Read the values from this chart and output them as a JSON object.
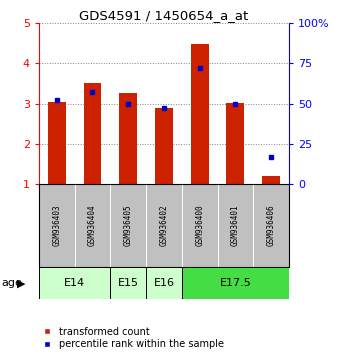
{
  "title": "GDS4591 / 1450654_a_at",
  "samples": [
    "GSM936403",
    "GSM936404",
    "GSM936405",
    "GSM936402",
    "GSM936400",
    "GSM936401",
    "GSM936406"
  ],
  "transformed_count": [
    3.05,
    3.5,
    3.27,
    2.9,
    4.47,
    3.02,
    1.2
  ],
  "percentile_rank": [
    52,
    57,
    50,
    47,
    72,
    50,
    17
  ],
  "age_groups": [
    {
      "label": "E14",
      "samples": [
        "GSM936403",
        "GSM936404"
      ],
      "color": "#ccffcc"
    },
    {
      "label": "E15",
      "samples": [
        "GSM936405"
      ],
      "color": "#ccffcc"
    },
    {
      "label": "E16",
      "samples": [
        "GSM936402"
      ],
      "color": "#ccffcc"
    },
    {
      "label": "E17.5",
      "samples": [
        "GSM936400",
        "GSM936401",
        "GSM936406"
      ],
      "color": "#44dd44"
    }
  ],
  "ylim_left": [
    1,
    5
  ],
  "ylim_right": [
    0,
    100
  ],
  "yticks_left": [
    1,
    2,
    3,
    4,
    5
  ],
  "yticks_right": [
    0,
    25,
    50,
    75,
    100
  ],
  "bar_color": "#cc2200",
  "dot_color": "#0000cc",
  "bar_width": 0.5,
  "background_color": "#ffffff",
  "age_label": "age",
  "sample_box_color": "#c0c0c0",
  "sample_box_edge": "#888888"
}
